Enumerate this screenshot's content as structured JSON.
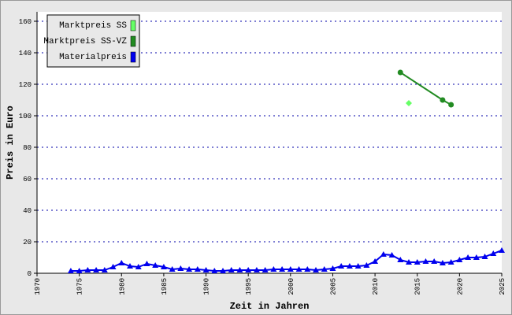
{
  "chart_data": {
    "type": "line",
    "x_label": "Zeit in Jahren",
    "y_label": "Preis in Euro",
    "xlim": [
      1970,
      2025
    ],
    "ylim": [
      0,
      166
    ],
    "xticks": [
      1970,
      1975,
      1980,
      1985,
      1990,
      1995,
      2000,
      2005,
      2010,
      2015,
      2020,
      2025
    ],
    "yticks": [
      0,
      20,
      40,
      60,
      80,
      100,
      120,
      140,
      160
    ],
    "grid": true,
    "legend": "upper left",
    "series": [
      {
        "name": "Marktpreis SS",
        "color": "#66ff66",
        "marker": "diamond",
        "line": false,
        "x": [
          2014
        ],
        "values": [
          108
        ]
      },
      {
        "name": "Marktpreis SS-VZ",
        "color": "#228b22",
        "marker": "circle",
        "line": true,
        "x": [
          2013,
          2018,
          2019
        ],
        "values": [
          127.5,
          110,
          107
        ]
      },
      {
        "name": "Materialpreis",
        "color": "#0000ee",
        "marker": "triangle",
        "line": true,
        "x": [
          1974,
          1975,
          1976,
          1977,
          1978,
          1979,
          1980,
          1981,
          1982,
          1983,
          1984,
          1985,
          1986,
          1987,
          1988,
          1989,
          1990,
          1991,
          1992,
          1993,
          1994,
          1995,
          1996,
          1997,
          1998,
          1999,
          2000,
          2001,
          2002,
          2003,
          2004,
          2005,
          2006,
          2007,
          2008,
          2009,
          2010,
          2011,
          2012,
          2013,
          2014,
          2015,
          2016,
          2017,
          2018,
          2019,
          2020,
          2021,
          2022,
          2023,
          2024,
          2025
        ],
        "values": [
          1.5,
          1.5,
          2,
          2,
          2,
          4,
          6.5,
          4.5,
          4,
          6,
          5,
          4,
          2.5,
          3,
          2.5,
          2.5,
          2,
          1.5,
          1.5,
          2,
          2,
          2,
          2,
          2,
          2.5,
          2.5,
          2.5,
          2.5,
          2.5,
          2,
          2.5,
          3,
          4.5,
          4.5,
          4.5,
          5,
          7.5,
          12,
          11.5,
          8.5,
          7,
          7,
          7.5,
          7.5,
          6.5,
          7,
          8.5,
          10,
          10,
          10.5,
          12.5,
          14.5
        ]
      }
    ]
  }
}
